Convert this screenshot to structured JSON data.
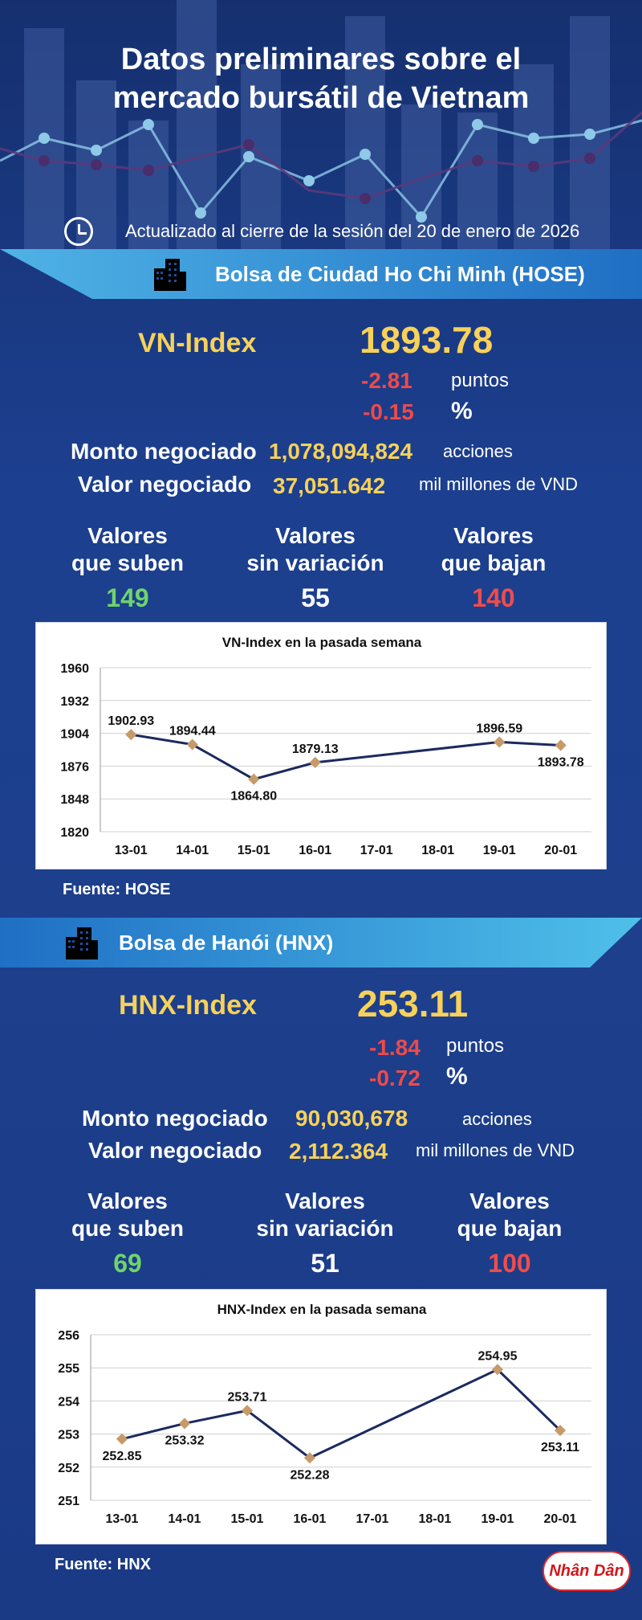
{
  "header": {
    "title_line1": "Datos preliminares sobre el",
    "title_line2": "mercado bursátil de Vietnam",
    "updated": "Actualizado al cierre de la sesión del 20 de enero de 2026",
    "clock_icon": "clock-icon"
  },
  "hose": {
    "exchange": "Bolsa de Ciudad Ho Chi Minh (HOSE)",
    "index_name": "VN-Index",
    "index_value": "1893.78",
    "change_points": "-2.81",
    "points_unit": "puntos",
    "change_pct": "-0.15",
    "pct_unit": "%",
    "volume_label": "Monto negociado",
    "volume_value": "1,078,094,824",
    "volume_unit": "acciones",
    "value_label": "Valor negociado",
    "value_value": "37,051.642",
    "value_unit": "mil millones de VND",
    "up_label_1": "Valores",
    "up_label_2": "que suben",
    "up_count": "149",
    "flat_label_1": "Valores",
    "flat_label_2": "sin variación",
    "flat_count": "55",
    "down_label_1": "Valores",
    "down_label_2": "que bajan",
    "down_count": "140",
    "source": "Fuente: HOSE"
  },
  "hnx": {
    "exchange": "Bolsa de Hanói (HNX)",
    "index_name": "HNX-Index",
    "index_value": "253.11",
    "change_points": "-1.84",
    "points_unit": "puntos",
    "change_pct": "-0.72",
    "pct_unit": "%",
    "volume_label": "Monto negociado",
    "volume_value": "90,030,678",
    "volume_unit": "acciones",
    "value_label": "Valor negociado",
    "value_value": "2,112.364",
    "value_unit": "mil millones de VND",
    "up_label_1": "Valores",
    "up_label_2": "que suben",
    "up_count": "69",
    "flat_label_1": "Valores",
    "flat_label_2": "sin variación",
    "flat_count": "51",
    "down_label_1": "Valores",
    "down_label_2": "que bajan",
    "down_count": "100",
    "source": "Fuente:  HNX"
  },
  "logo_text": "Nhân Dân",
  "colors": {
    "accent_yellow": "#f7d15a",
    "down_red": "#ef4a4a",
    "up_green": "#6fd46c",
    "line_navy": "#1b2a5e",
    "marker": "#c79a6a"
  },
  "chart_data": [
    {
      "type": "line",
      "title": "VN-Index en la pasada semana",
      "categories": [
        "13-01",
        "14-01",
        "15-01",
        "16-01",
        "17-01",
        "18-01",
        "19-01",
        "20-01"
      ],
      "values": [
        1902.93,
        1894.44,
        1864.8,
        1879.13,
        null,
        null,
        1896.59,
        1893.78
      ],
      "labels": [
        "1902.93",
        "1894.44",
        "1864.80",
        "1879.13",
        "",
        "",
        "1896.59",
        "1893.78"
      ],
      "label_pos": [
        "above",
        "above",
        "below",
        "above",
        "",
        "",
        "above",
        "below"
      ],
      "ylim": [
        1820,
        1960
      ],
      "yticks": [
        "1960",
        "1932",
        "1904",
        "1876",
        "1848",
        "1820"
      ],
      "grid": true,
      "legend": "none"
    },
    {
      "type": "line",
      "title": "HNX-Index en la pasada semana",
      "categories": [
        "13-01",
        "14-01",
        "15-01",
        "16-01",
        "17-01",
        "18-01",
        "19-01",
        "20-01"
      ],
      "values": [
        252.85,
        253.32,
        253.71,
        252.28,
        null,
        null,
        254.95,
        253.11
      ],
      "labels": [
        "252.85",
        "253.32",
        "253.71",
        "252.28",
        "",
        "",
        "254.95",
        "253.11"
      ],
      "label_pos": [
        "below",
        "below",
        "above",
        "below",
        "",
        "",
        "above",
        "below"
      ],
      "ylim": [
        251,
        256
      ],
      "yticks": [
        "256",
        "255",
        "254",
        "253",
        "252",
        "251"
      ],
      "grid": true,
      "legend": "none"
    }
  ]
}
